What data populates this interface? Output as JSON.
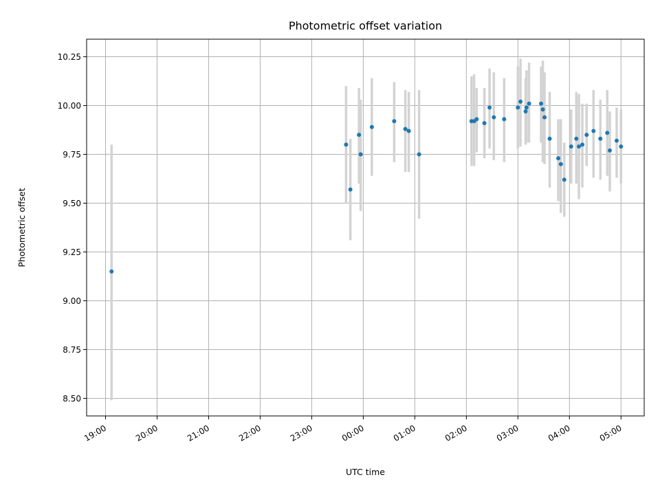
{
  "chart_data": {
    "type": "scatter",
    "title": "Photometric offset variation",
    "xlabel": "UTC time",
    "ylabel": "Photometric offset",
    "x_unit": "UTC hour of day (hours after 24:00 roll over past midnight)",
    "xlim": [
      "18:38",
      "05:27"
    ],
    "ylim": [
      8.41,
      10.34
    ],
    "grid": true,
    "xticks": [
      "19:00",
      "20:00",
      "21:00",
      "22:00",
      "23:00",
      "00:00",
      "01:00",
      "02:00",
      "03:00",
      "04:00",
      "05:00"
    ],
    "yticks": [
      "8.50",
      "8.75",
      "9.00",
      "9.25",
      "9.50",
      "9.75",
      "10.00",
      "10.25"
    ],
    "colors": {
      "point": "#1f77b4",
      "errorbar": "#d3d3d3",
      "grid": "#b0b0b0"
    },
    "points": [
      {
        "time": "19:07",
        "y": 9.15,
        "ylow": 8.49,
        "yhigh": 9.8
      },
      {
        "time": "23:40",
        "y": 9.8,
        "ylow": 9.5,
        "yhigh": 10.1
      },
      {
        "time": "23:45",
        "y": 9.57,
        "ylow": 9.31,
        "yhigh": 9.83
      },
      {
        "time": "23:55",
        "y": 9.85,
        "ylow": 9.6,
        "yhigh": 10.09
      },
      {
        "time": "23:57",
        "y": 9.75,
        "ylow": 9.46,
        "yhigh": 10.03
      },
      {
        "time": "00:10",
        "y": 9.89,
        "ylow": 9.64,
        "yhigh": 10.14
      },
      {
        "time": "00:36",
        "y": 9.92,
        "ylow": 9.71,
        "yhigh": 10.12
      },
      {
        "time": "00:49",
        "y": 9.88,
        "ylow": 9.66,
        "yhigh": 10.08
      },
      {
        "time": "00:53",
        "y": 9.87,
        "ylow": 9.66,
        "yhigh": 10.07
      },
      {
        "time": "01:05",
        "y": 9.75,
        "ylow": 9.42,
        "yhigh": 10.08
      },
      {
        "time": "02:06",
        "y": 9.92,
        "ylow": 9.69,
        "yhigh": 10.15
      },
      {
        "time": "02:09",
        "y": 9.92,
        "ylow": 9.69,
        "yhigh": 10.16
      },
      {
        "time": "02:12",
        "y": 9.93,
        "ylow": 9.76,
        "yhigh": 10.09
      },
      {
        "time": "02:21",
        "y": 9.91,
        "ylow": 9.73,
        "yhigh": 10.09
      },
      {
        "time": "02:27",
        "y": 9.99,
        "ylow": 9.78,
        "yhigh": 10.19
      },
      {
        "time": "02:32",
        "y": 9.94,
        "ylow": 9.72,
        "yhigh": 10.17
      },
      {
        "time": "02:44",
        "y": 9.93,
        "ylow": 9.71,
        "yhigh": 10.14
      },
      {
        "time": "03:00",
        "y": 9.99,
        "ylow": 9.78,
        "yhigh": 10.2
      },
      {
        "time": "03:03",
        "y": 10.02,
        "ylow": 9.79,
        "yhigh": 10.24
      },
      {
        "time": "03:09",
        "y": 9.97,
        "ylow": 9.8,
        "yhigh": 10.14
      },
      {
        "time": "03:10",
        "y": 9.99,
        "ylow": 9.81,
        "yhigh": 10.18
      },
      {
        "time": "03:13",
        "y": 10.01,
        "ylow": 9.81,
        "yhigh": 10.22
      },
      {
        "time": "03:27",
        "y": 10.01,
        "ylow": 9.81,
        "yhigh": 10.2
      },
      {
        "time": "03:29",
        "y": 9.98,
        "ylow": 9.71,
        "yhigh": 10.23
      },
      {
        "time": "03:31",
        "y": 9.94,
        "ylow": 9.7,
        "yhigh": 10.17
      },
      {
        "time": "03:37",
        "y": 9.83,
        "ylow": 9.58,
        "yhigh": 10.07
      },
      {
        "time": "03:47",
        "y": 9.73,
        "ylow": 9.51,
        "yhigh": 9.93
      },
      {
        "time": "03:50",
        "y": 9.7,
        "ylow": 9.45,
        "yhigh": 9.93
      },
      {
        "time": "03:54",
        "y": 9.62,
        "ylow": 9.43,
        "yhigh": 9.81
      },
      {
        "time": "04:02",
        "y": 9.79,
        "ylow": 9.6,
        "yhigh": 9.98
      },
      {
        "time": "04:08",
        "y": 9.83,
        "ylow": 9.6,
        "yhigh": 10.07
      },
      {
        "time": "04:11",
        "y": 9.79,
        "ylow": 9.52,
        "yhigh": 10.06
      },
      {
        "time": "04:15",
        "y": 9.8,
        "ylow": 9.58,
        "yhigh": 10.01
      },
      {
        "time": "04:20",
        "y": 9.85,
        "ylow": 9.69,
        "yhigh": 10.01
      },
      {
        "time": "04:28",
        "y": 9.87,
        "ylow": 9.63,
        "yhigh": 10.08
      },
      {
        "time": "04:36",
        "y": 9.83,
        "ylow": 9.62,
        "yhigh": 10.03
      },
      {
        "time": "04:44",
        "y": 9.86,
        "ylow": 9.64,
        "yhigh": 10.08
      },
      {
        "time": "04:47",
        "y": 9.77,
        "ylow": 9.56,
        "yhigh": 9.97
      },
      {
        "time": "04:55",
        "y": 9.82,
        "ylow": 9.63,
        "yhigh": 9.99
      },
      {
        "time": "05:00",
        "y": 9.79,
        "ylow": 9.6,
        "yhigh": 9.98
      }
    ]
  }
}
